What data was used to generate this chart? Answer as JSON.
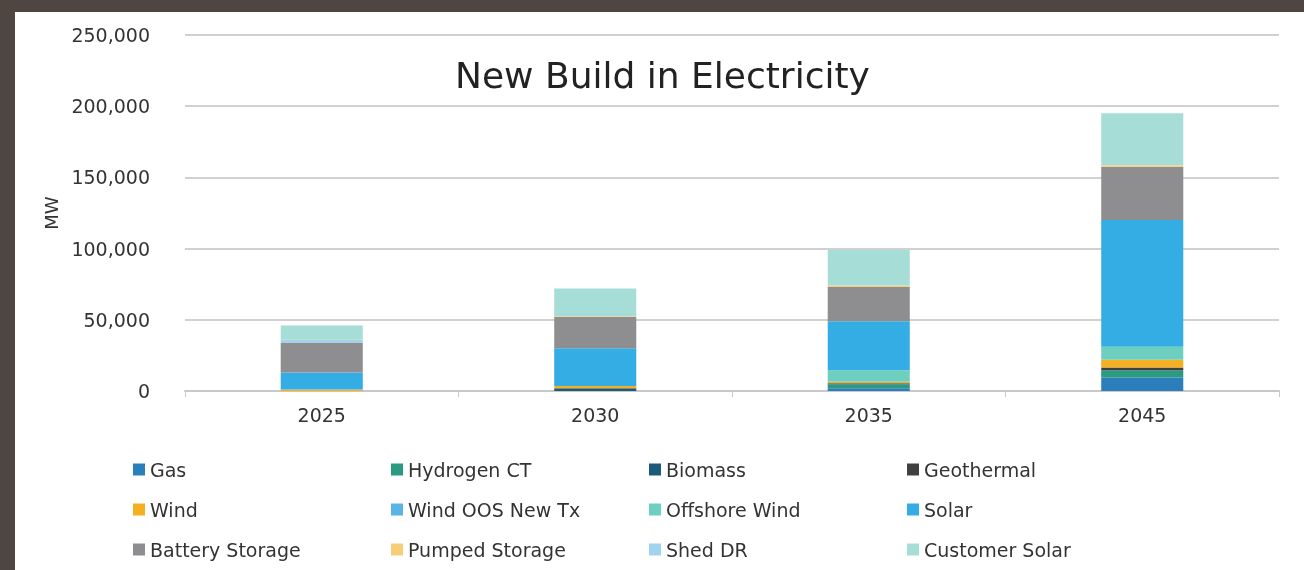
{
  "chart_data": {
    "type": "bar",
    "title": "New Build in Electricity",
    "ylabel": "MW",
    "stacked": true,
    "categories": [
      "2025",
      "2030",
      "2035",
      "2045"
    ],
    "series": [
      {
        "name": "Gas",
        "color": "#2a7fba",
        "values": [
          0,
          0,
          2000,
          9500
        ]
      },
      {
        "name": "Hydrogen CT",
        "color": "#2a9a80",
        "values": [
          0,
          0,
          2500,
          5000
        ]
      },
      {
        "name": "Biomass",
        "color": "#1b5a7a",
        "values": [
          0,
          2000,
          1000,
          0
        ]
      },
      {
        "name": "Geothermal",
        "color": "#404040",
        "values": [
          0,
          0,
          0,
          2000
        ]
      },
      {
        "name": "Wind",
        "color": "#f5b021",
        "values": [
          1000,
          1500,
          1000,
          5500
        ]
      },
      {
        "name": "Wind OOS New Tx",
        "color": "#5ab4e5",
        "values": [
          0,
          0,
          0,
          0
        ]
      },
      {
        "name": "Offshore Wind",
        "color": "#6fcfbf",
        "values": [
          0,
          0,
          8000,
          9000
        ]
      },
      {
        "name": "Solar",
        "color": "#33ade3",
        "values": [
          12000,
          26500,
          34500,
          89000
        ]
      },
      {
        "name": "Battery Storage",
        "color": "#8e8e90",
        "values": [
          21000,
          22000,
          24000,
          37500
        ]
      },
      {
        "name": "Pumped Storage",
        "color": "#f8cd7a",
        "values": [
          0,
          500,
          1000,
          1000
        ]
      },
      {
        "name": "Shed DR",
        "color": "#9fd3ee",
        "values": [
          2000,
          0,
          0,
          0
        ]
      },
      {
        "name": "Customer Solar",
        "color": "#a6ded7",
        "values": [
          10000,
          19500,
          25000,
          36500
        ]
      }
    ],
    "ylim": [
      0,
      250000
    ],
    "yticks": [
      {
        "value": 0,
        "label": "0"
      },
      {
        "value": 50000,
        "label": "50,000"
      },
      {
        "value": 100000,
        "label": "100,000"
      },
      {
        "value": 150000,
        "label": "150,000"
      },
      {
        "value": 200000,
        "label": "200,000"
      },
      {
        "value": 250000,
        "label": "250,000"
      }
    ],
    "grid": "y",
    "legend": "bottom"
  }
}
